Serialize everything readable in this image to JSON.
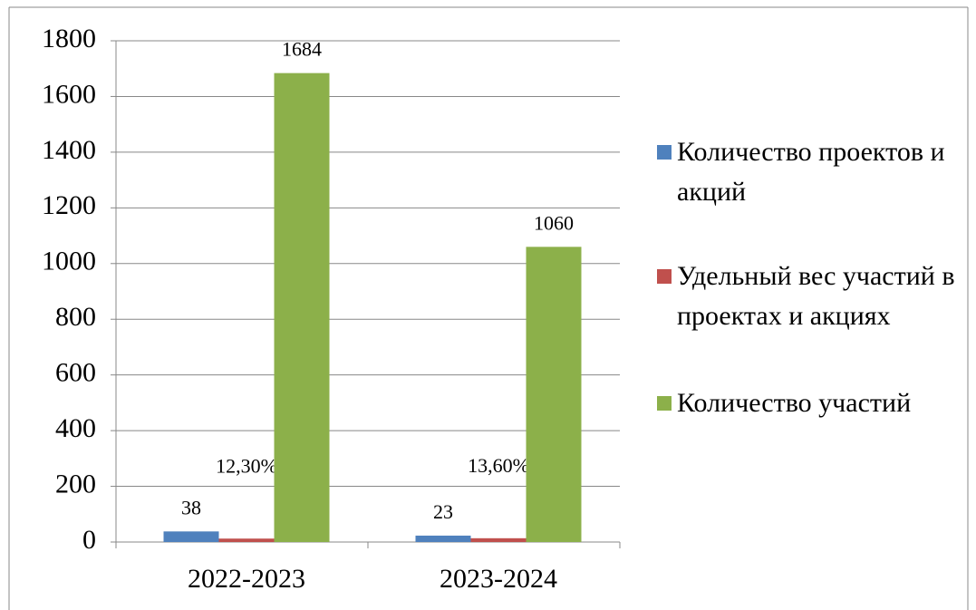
{
  "chart_data": {
    "type": "bar",
    "categories": [
      "2022-2023",
      "2023-2024"
    ],
    "series": [
      {
        "name": "Количество проектов и акций",
        "color": "#4f81bd",
        "values": [
          38,
          23
        ]
      },
      {
        "name": "Удельный вес участий в проектах и акциях",
        "color": "#c0504d",
        "values": [
          12.3,
          13.6
        ],
        "value_labels": [
          "12,30%",
          "13,60%"
        ]
      },
      {
        "name": "Количество участий",
        "color": "#8cb04a",
        "values": [
          1684,
          1060
        ]
      }
    ],
    "ylim": [
      0,
      1800
    ],
    "yticks": [
      0,
      200,
      400,
      600,
      800,
      1000,
      1200,
      1400,
      1600,
      1800
    ],
    "grid": true
  }
}
